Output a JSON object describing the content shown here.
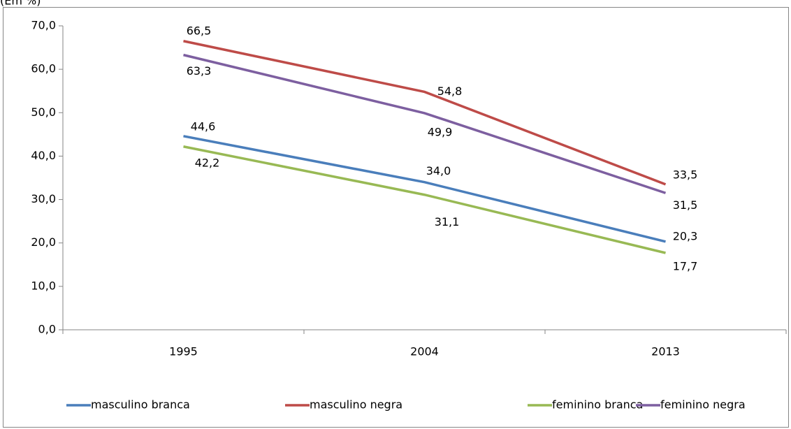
{
  "chart_data": {
    "type": "line",
    "title": "(Em %)",
    "categories": [
      "1995",
      "2004",
      "2013"
    ],
    "series": [
      {
        "name": "masculino branca",
        "color": "#4a7ebb",
        "values": [
          44.6,
          34.0,
          20.3
        ],
        "value_labels": [
          "44,6",
          "34,0",
          "20,3"
        ]
      },
      {
        "name": "masculino negra",
        "color": "#be4b48",
        "values": [
          66.5,
          54.8,
          33.5
        ],
        "value_labels": [
          "66,5",
          "54,8",
          "33,5"
        ]
      },
      {
        "name": "feminino branca",
        "color": "#98b954",
        "values": [
          42.2,
          31.1,
          17.7
        ],
        "value_labels": [
          "42,2",
          "31,1",
          "17,7"
        ]
      },
      {
        "name": "feminino negra",
        "color": "#7d5fa0",
        "values": [
          63.3,
          49.9,
          31.5
        ],
        "value_labels": [
          "63,3",
          "49,9",
          "31,5"
        ]
      }
    ],
    "ylim": [
      0,
      70
    ],
    "yticks": [
      {
        "value": 0,
        "label": "0,0"
      },
      {
        "value": 10,
        "label": "10,0"
      },
      {
        "value": 20,
        "label": "20,0"
      },
      {
        "value": 30,
        "label": "30,0"
      },
      {
        "value": 40,
        "label": "40,0"
      },
      {
        "value": 50,
        "label": "50,0"
      },
      {
        "value": 60,
        "label": "60,0"
      },
      {
        "value": 70,
        "label": "70,0"
      }
    ],
    "legend": "bottom"
  }
}
